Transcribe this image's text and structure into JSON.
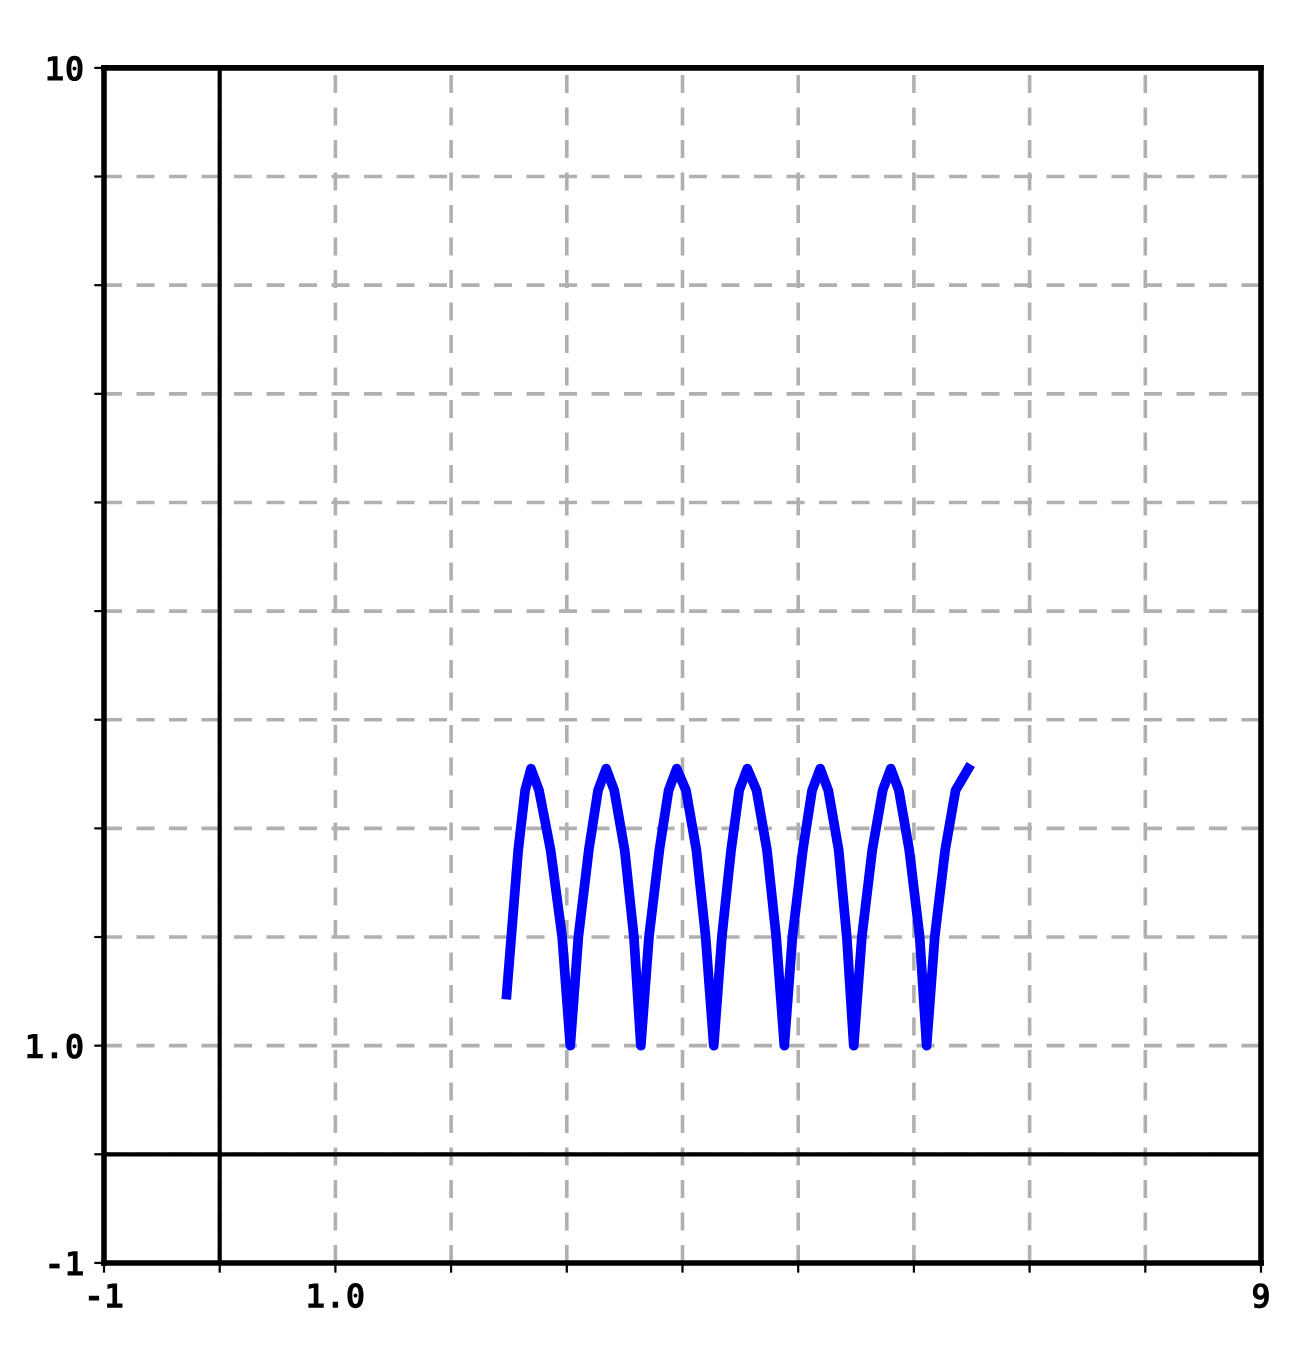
{
  "chart_data": {
    "type": "line",
    "xlim": [
      -1,
      9
    ],
    "ylim": [
      -1,
      10
    ],
    "xticks": [
      {
        "value": -1,
        "label": "-1"
      },
      {
        "value": 0,
        "label": null
      },
      {
        "value": 1,
        "label": "1.0"
      },
      {
        "value": 2,
        "label": null
      },
      {
        "value": 3,
        "label": null
      },
      {
        "value": 4,
        "label": null
      },
      {
        "value": 5,
        "label": null
      },
      {
        "value": 6,
        "label": null
      },
      {
        "value": 7,
        "label": null
      },
      {
        "value": 8,
        "label": null
      },
      {
        "value": 9,
        "label": "9"
      }
    ],
    "yticks": [
      {
        "value": -1,
        "label": "-1"
      },
      {
        "value": 0,
        "label": null
      },
      {
        "value": 1,
        "label": "1.0"
      },
      {
        "value": 2,
        "label": null
      },
      {
        "value": 3,
        "label": null
      },
      {
        "value": 4,
        "label": null
      },
      {
        "value": 5,
        "label": null
      },
      {
        "value": 6,
        "label": null
      },
      {
        "value": 7,
        "label": null
      },
      {
        "value": 8,
        "label": null
      },
      {
        "value": 9,
        "label": null
      },
      {
        "value": 10,
        "label": "10"
      }
    ],
    "grid": true,
    "marker": "none",
    "line_style": "solid",
    "series": [
      {
        "color": "#0000ff",
        "x": [
          2.48,
          2.58,
          2.64,
          2.69,
          2.76,
          2.86,
          2.96,
          3.03,
          3.1,
          3.19,
          3.27,
          3.34,
          3.41,
          3.5,
          3.58,
          3.64,
          3.71,
          3.8,
          3.88,
          3.95,
          4.03,
          4.12,
          4.2,
          4.27,
          4.34,
          4.42,
          4.49,
          4.56,
          4.64,
          4.73,
          4.81,
          4.88,
          4.95,
          5.04,
          5.12,
          5.19,
          5.26,
          5.35,
          5.42,
          5.48,
          5.55,
          5.64,
          5.73,
          5.8,
          5.87,
          5.96,
          6.05,
          6.11,
          6.18,
          6.27,
          6.36,
          6.47
        ],
        "values": [
          1.47,
          2.8,
          3.35,
          3.55,
          3.35,
          2.8,
          2.0,
          1.0,
          2.0,
          2.8,
          3.35,
          3.55,
          3.35,
          2.8,
          2.0,
          1.0,
          2.0,
          2.8,
          3.35,
          3.55,
          3.35,
          2.8,
          2.0,
          1.0,
          2.0,
          2.8,
          3.35,
          3.55,
          3.35,
          2.8,
          2.0,
          1.0,
          2.0,
          2.8,
          3.35,
          3.55,
          3.35,
          2.8,
          2.0,
          1.0,
          2.0,
          2.8,
          3.35,
          3.55,
          3.35,
          2.8,
          2.0,
          1.0,
          2.0,
          2.8,
          3.35,
          3.55
        ]
      }
    ]
  }
}
